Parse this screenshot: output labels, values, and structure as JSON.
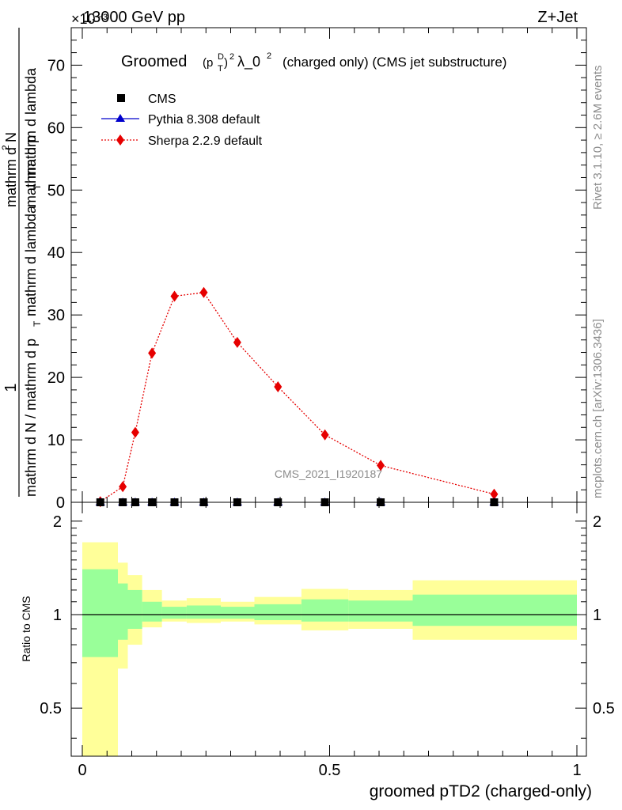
{
  "header": {
    "energy": "13000 GeV pp",
    "process": "Z+Jet",
    "exponent": "×10⁻³"
  },
  "side_labels": {
    "rivet": "Rivet 3.1.10, ≥ 2.6M events",
    "mcplots": "mcplots.cern.ch [arXiv:1306.3436]"
  },
  "watermark": "CMS_2021_I1920187",
  "chart_data": [
    {
      "type": "line",
      "title": "Groomed (p_T^D)^2 λ_0^2 (charged only) (CMS jet substructure)",
      "title_parts": {
        "word": "Groomed",
        "p": "(p",
        "sub": "T",
        "sup": "D",
        "close": ")",
        "sq": "2",
        "lambda": "λ_0",
        "rest": "(charged only) (CMS jet substructure)"
      },
      "ylabel_parts": {
        "one": "1",
        "den_main": "mathrm d N / mathrm d p",
        "den_sub": "T",
        "den_rest": "mathrm d lambda",
        "num_main": "mathrm d",
        "num_sup": "2",
        "num_rest": "N",
        "num2_main": "mathrm d p",
        "num2_sub": "T",
        "num2_rest": "mathrm d lambda"
      },
      "xlim": [
        0,
        1
      ],
      "ylim": [
        0,
        76
      ],
      "yticks": [
        0,
        10,
        20,
        30,
        40,
        50,
        60,
        70
      ],
      "legend_position": "top-left",
      "series": [
        {
          "name": "CMS",
          "marker": "square",
          "color": "#000000",
          "x": [
            0.0364,
            0.0818,
            0.1071,
            0.141,
            0.1864,
            0.2456,
            0.3134,
            0.3956,
            0.4906,
            0.6033,
            0.8327
          ],
          "y": [
            0,
            0,
            0,
            0,
            0,
            0,
            0,
            0,
            0,
            0,
            0
          ]
        },
        {
          "name": "Pythia 8.308 default",
          "marker": "triangle",
          "color": "#0000cc",
          "x": [
            0.0364,
            0.0818,
            0.1071,
            0.141,
            0.1864,
            0.2456,
            0.3134,
            0.3956,
            0.4906,
            0.6033,
            0.8327
          ],
          "y": [
            0,
            0,
            0,
            0,
            0,
            0,
            0,
            0,
            0,
            0,
            0
          ]
        },
        {
          "name": "Sherpa 2.2.9 default",
          "marker": "diamond",
          "color": "#e60000",
          "x": [
            0.0364,
            0.0818,
            0.1071,
            0.141,
            0.1864,
            0.2456,
            0.3134,
            0.3956,
            0.4906,
            0.6033,
            0.8327
          ],
          "y": [
            0.1,
            2.5,
            11.2,
            23.9,
            33.0,
            33.6,
            25.6,
            18.5,
            10.8,
            5.9,
            1.3
          ]
        }
      ]
    },
    {
      "type": "area",
      "ylabel": "Ratio to CMS",
      "xlabel": "groomed pTD2 (charged-only)",
      "xlim": [
        0,
        1
      ],
      "ylim": [
        0.35,
        2.3
      ],
      "yticks": [
        0.5,
        1,
        2
      ],
      "xticks": [
        0,
        0.5,
        1
      ],
      "reference_line": 1,
      "bands": {
        "edges": [
          0,
          0.072,
          0.092,
          0.121,
          0.161,
          0.211,
          0.28,
          0.348,
          0.443,
          0.538,
          0.668,
          1.0
        ],
        "inner_lo": [
          0.73,
          0.83,
          0.9,
          0.95,
          0.97,
          0.97,
          0.97,
          0.96,
          0.95,
          0.95,
          0.92
        ],
        "inner_hi": [
          1.4,
          1.26,
          1.2,
          1.1,
          1.06,
          1.07,
          1.06,
          1.08,
          1.12,
          1.11,
          1.16
        ],
        "outer_lo": [
          0.3,
          0.67,
          0.8,
          0.91,
          0.95,
          0.94,
          0.95,
          0.93,
          0.89,
          0.9,
          0.83
        ],
        "outer_hi": [
          1.71,
          1.47,
          1.34,
          1.2,
          1.11,
          1.13,
          1.1,
          1.14,
          1.21,
          1.2,
          1.29
        ],
        "inner_color": "#99ff99",
        "outer_color": "#ffff99"
      }
    }
  ]
}
